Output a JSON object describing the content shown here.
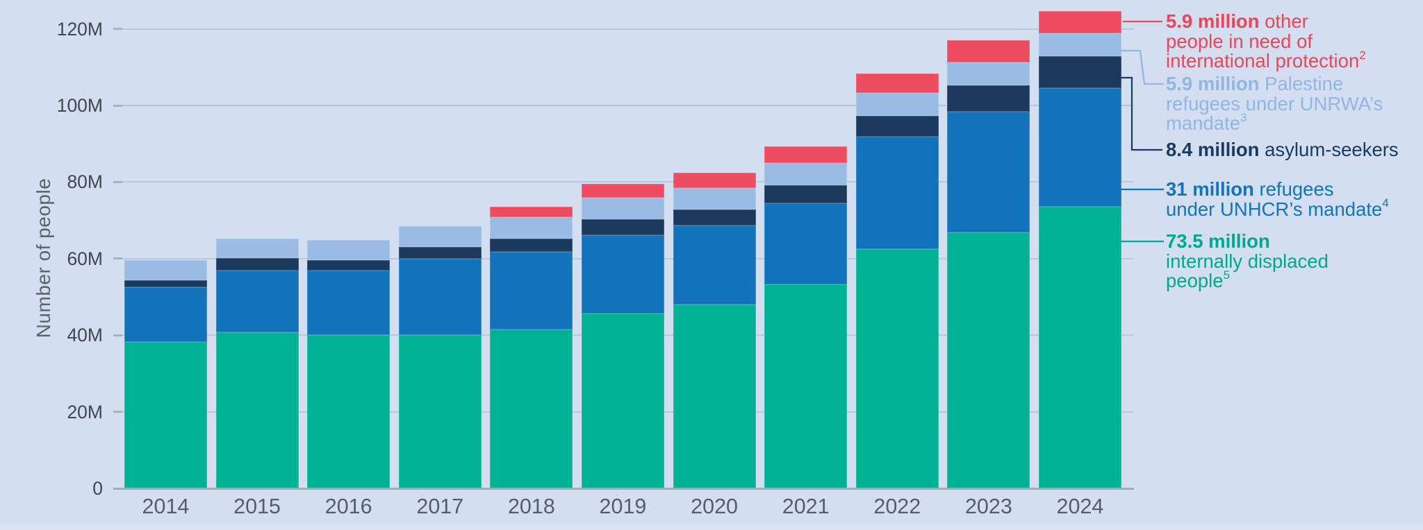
{
  "axis": {
    "y_title": "Number of people",
    "y_ticks": [
      {
        "value": 0,
        "label": "0"
      },
      {
        "value": 20,
        "label": "20M"
      },
      {
        "value": 40,
        "label": "40M"
      },
      {
        "value": 60,
        "label": "60M"
      },
      {
        "value": 80,
        "label": "80M"
      },
      {
        "value": 100,
        "label": "100M"
      },
      {
        "value": 120,
        "label": "120M"
      }
    ]
  },
  "chart_data": {
    "type": "bar",
    "stacked": true,
    "title": "",
    "xlabel": "",
    "ylabel": "Number of people",
    "ylim": [
      0,
      125
    ],
    "grid": "horizontal",
    "legend_position": "right",
    "categories": [
      "2014",
      "2015",
      "2016",
      "2017",
      "2018",
      "2019",
      "2020",
      "2021",
      "2022",
      "2023",
      "2024"
    ],
    "series": [
      {
        "name": "internally displaced people",
        "color": "#00B194",
        "values": [
          38.2,
          40.8,
          40.0,
          40.0,
          41.4,
          45.7,
          48.0,
          53.2,
          62.5,
          66.8,
          73.5
        ]
      },
      {
        "name": "refugees under UNHCR’s mandate",
        "color": "#1273BA",
        "values": [
          14.4,
          16.1,
          16.9,
          19.9,
          20.4,
          20.4,
          20.7,
          21.3,
          29.4,
          31.6,
          31.0
        ]
      },
      {
        "name": "asylum-seekers",
        "color": "#1C395E",
        "values": [
          1.8,
          3.2,
          2.7,
          3.1,
          3.5,
          4.2,
          4.1,
          4.6,
          5.4,
          6.9,
          8.4
        ]
      },
      {
        "name": "Palestine refugees under UNRWA’s mandate",
        "color": "#9ABBE3",
        "values": [
          5.2,
          5.2,
          5.3,
          5.4,
          5.5,
          5.6,
          5.7,
          5.8,
          5.9,
          6.0,
          5.9
        ]
      },
      {
        "name": "other people in need of international protection",
        "color": "#EE4C60",
        "values": [
          0,
          0,
          0,
          0,
          2.8,
          3.6,
          3.9,
          4.4,
          5.2,
          5.8,
          5.9
        ]
      }
    ]
  },
  "legend": {
    "entries": [
      {
        "id": "other",
        "value": "5.9 million",
        "rest": " other\npeople in need of\ninternational protection",
        "superscript": "2",
        "color": "#EE4458"
      },
      {
        "id": "unrwa",
        "value": "5.9 million",
        "rest": " Palestine\nrefugees under UNRWA’s\nmandate",
        "superscript": "3",
        "color": "#92B5E3"
      },
      {
        "id": "asylum",
        "value": "8.4 million",
        "rest": " asylum-seekers",
        "superscript": "",
        "color": "#1C3B61"
      },
      {
        "id": "unhcr",
        "value": "31 million",
        "rest": " refugees\nunder UNHCR’s mandate",
        "superscript": "4",
        "color": "#1274BE"
      },
      {
        "id": "idp",
        "value": "73.5 million",
        "rest": "\ninternally displaced\npeople",
        "superscript": "5",
        "color": "#00A890"
      }
    ]
  },
  "colors": {
    "background": "#D3DEF0",
    "bottom_strip": "#DCE4F3",
    "gridline": "#A5B3CF",
    "baseline": "#A2AAB5",
    "axis_label_text": "#3F4751",
    "year_label_text": "#555D68",
    "axis_title_text": "#5A626C"
  }
}
